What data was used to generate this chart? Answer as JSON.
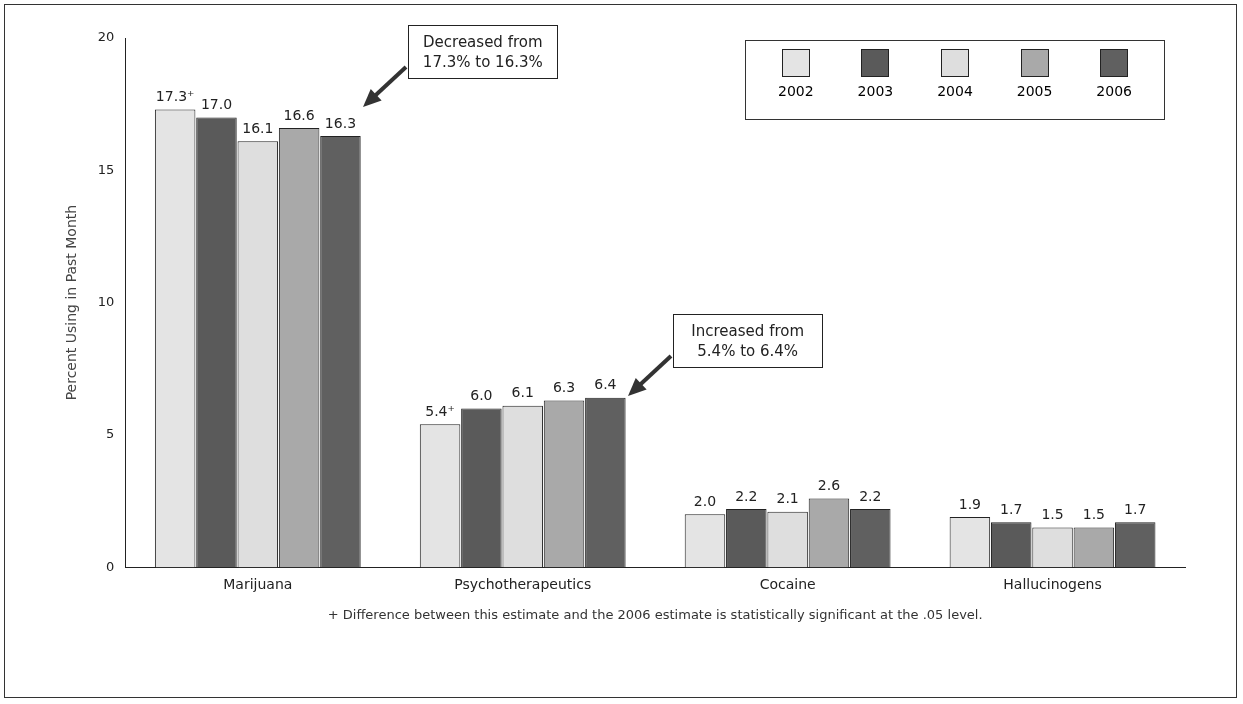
{
  "chart_data": {
    "type": "bar",
    "ylabel": "Percent Using in Past Month",
    "categories": [
      "Marijuana",
      "Psychotherapeutics",
      "Cocaine",
      "Hallucinogens"
    ],
    "series": [
      {
        "name": "2002",
        "color": "#e4e4e4",
        "values": [
          17.3,
          5.4,
          2.0,
          1.9
        ],
        "value_labels": [
          "17.3⁺",
          "5.4⁺",
          "2.0",
          "1.9"
        ]
      },
      {
        "name": "2003",
        "color": "#5a5a5a",
        "values": [
          17.0,
          6.0,
          2.2,
          1.7
        ],
        "value_labels": [
          "17.0",
          "6.0",
          "2.2",
          "1.7"
        ]
      },
      {
        "name": "2004",
        "color": "#dedede",
        "values": [
          16.1,
          6.1,
          2.1,
          1.5
        ],
        "value_labels": [
          "16.1",
          "6.1",
          "2.1",
          "1.5"
        ]
      },
      {
        "name": "2005",
        "color": "#a9a9a9",
        "values": [
          16.6,
          6.3,
          2.6,
          1.5
        ],
        "value_labels": [
          "16.6",
          "6.3",
          "2.6",
          "1.5"
        ]
      },
      {
        "name": "2006",
        "color": "#606060",
        "values": [
          16.3,
          6.4,
          2.2,
          1.7
        ],
        "value_labels": [
          "16.3",
          "6.4",
          "2.2",
          "1.7"
        ]
      }
    ],
    "ylim": [
      0,
      20
    ],
    "yticks": [
      0,
      5,
      10,
      15,
      20
    ],
    "grid": false,
    "legend": "top right",
    "annotations": [
      "Decreased from 17.3% to 16.3%",
      "Increased from 5.4% to 6.4%",
      "+ Difference between this estimate and the 2006 estimate is statistically significant at the .05 level."
    ]
  }
}
